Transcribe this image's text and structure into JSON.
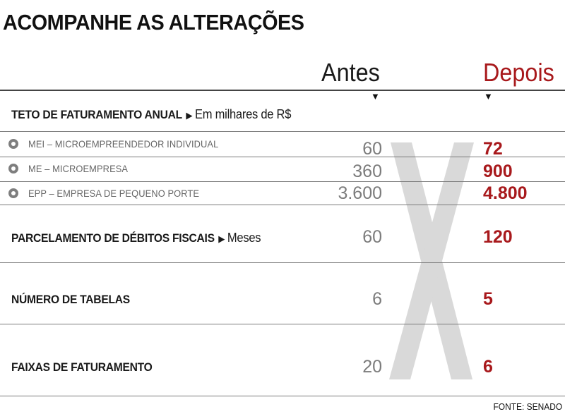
{
  "title": "ACOMPANHE AS ALTERAÇÕES",
  "columns": {
    "before": "Antes",
    "after": "Depois"
  },
  "colors": {
    "after_accent": "#a8191c",
    "before_value": "#7c7c7c",
    "big_x": "#d9d9d9"
  },
  "sections": {
    "teto": {
      "label": "TETO DE FATURAMENTO ANUAL",
      "unit": "Em milhares de R$",
      "rows": [
        {
          "label": "MEI – MICROEMPREENDEDOR INDIVIDUAL",
          "antes": "60",
          "depois": "72"
        },
        {
          "label": "ME – MICROEMPRESA",
          "antes": "360",
          "depois": "900"
        },
        {
          "label": "EPP – EMPRESA DE PEQUENO PORTE",
          "antes": "3.600",
          "depois": "4.800"
        }
      ]
    },
    "parcelamento": {
      "label": "PARCELAMENTO DE DÉBITOS FISCAIS",
      "unit": "Meses",
      "antes": "60",
      "depois": "120"
    },
    "tabelas": {
      "label": "NÚMERO DE TABELAS",
      "antes": "6",
      "depois": "5"
    },
    "faixas": {
      "label": "FAIXAS DE FATURAMENTO",
      "antes": "20",
      "depois": "6"
    }
  },
  "source": "FONTE: SENADO",
  "chart_data": {
    "type": "table",
    "title": "ACOMPANHE AS ALTERAÇÕES",
    "columns": [
      "Antes",
      "Depois"
    ],
    "rows": [
      {
        "category": "TETO DE FATURAMENTO ANUAL",
        "unit": "Em milhares de R$",
        "item": "MEI – MICROEMPREENDEDOR INDIVIDUAL",
        "antes": 60,
        "depois": 72
      },
      {
        "category": "TETO DE FATURAMENTO ANUAL",
        "unit": "Em milhares de R$",
        "item": "ME – MICROEMPRESA",
        "antes": 360,
        "depois": 900
      },
      {
        "category": "TETO DE FATURAMENTO ANUAL",
        "unit": "Em milhares de R$",
        "item": "EPP – EMPRESA DE PEQUENO PORTE",
        "antes": 3600,
        "depois": 4800
      },
      {
        "category": "PARCELAMENTO DE DÉBITOS FISCAIS",
        "unit": "Meses",
        "antes": 60,
        "depois": 120
      },
      {
        "category": "NÚMERO DE TABELAS",
        "antes": 6,
        "depois": 5
      },
      {
        "category": "FAIXAS DE FATURAMENTO",
        "antes": 20,
        "depois": 6
      }
    ],
    "source": "FONTE: SENADO"
  }
}
